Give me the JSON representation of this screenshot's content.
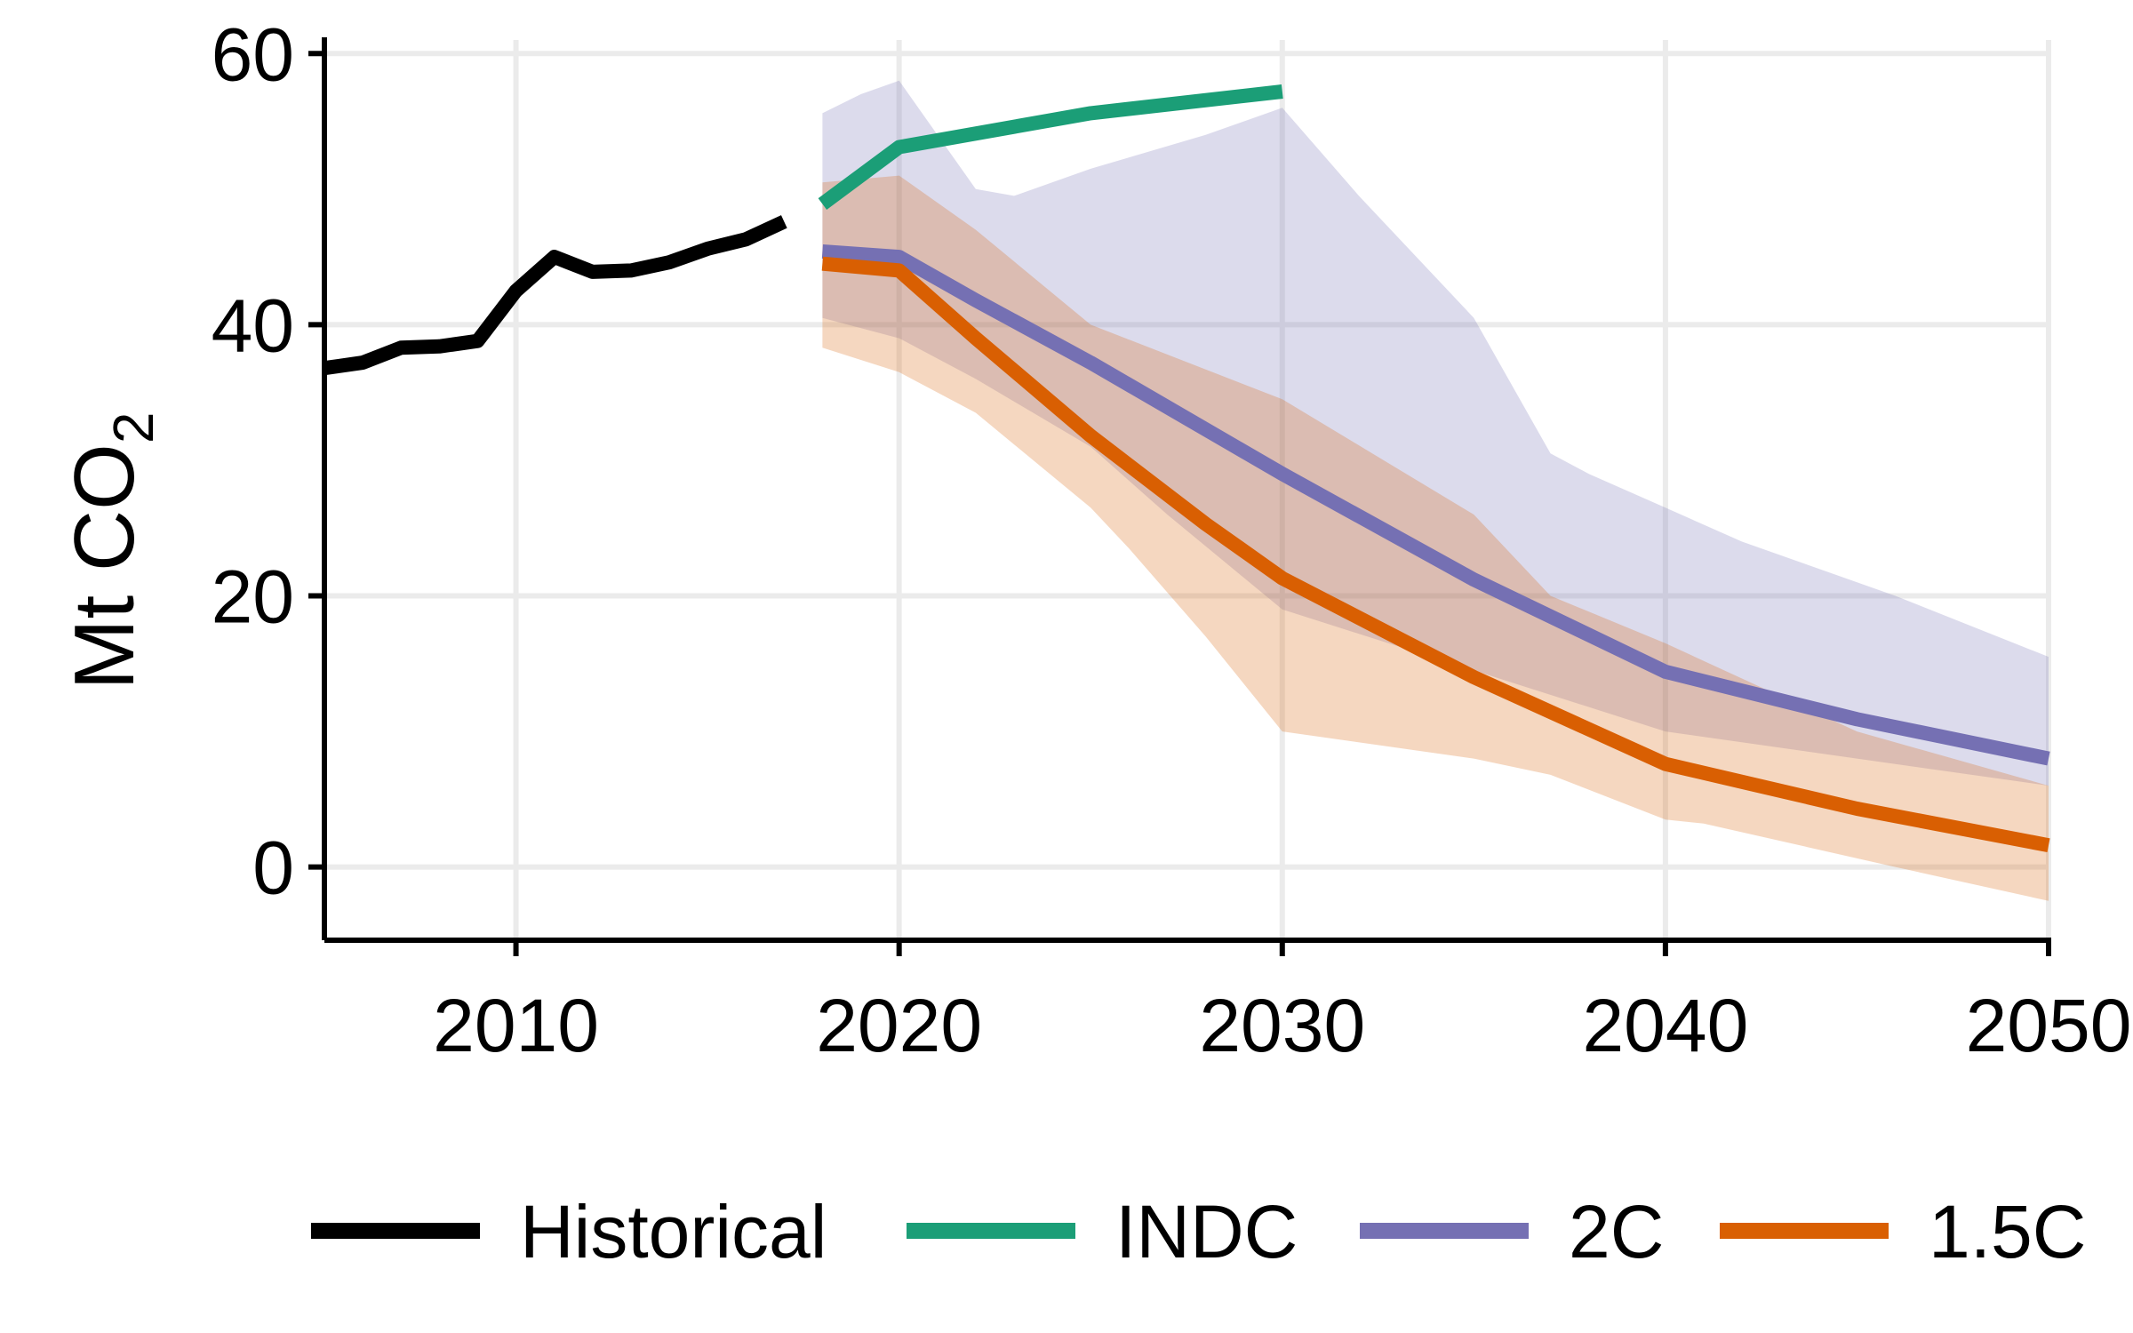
{
  "chart_data": {
    "type": "line",
    "ylabel": "Mt CO",
    "ylabel_subscript": "2",
    "xlim": [
      2005,
      2050
    ],
    "ylim": [
      -5.4,
      61
    ],
    "grid": true,
    "x_ticks": [
      2010,
      2020,
      2030,
      2040,
      2050
    ],
    "y_ticks": [
      0,
      20,
      40,
      60
    ],
    "legend_position": "bottom",
    "series": [
      {
        "name": "Historical",
        "color": "#000000",
        "points": [
          [
            2005,
            36.8
          ],
          [
            2006,
            37.2
          ],
          [
            2007,
            38.3
          ],
          [
            2008,
            38.4
          ],
          [
            2009,
            38.8
          ],
          [
            2010,
            42.5
          ],
          [
            2011,
            45.0
          ],
          [
            2012,
            43.9
          ],
          [
            2013,
            44.0
          ],
          [
            2014,
            44.6
          ],
          [
            2015,
            45.6
          ],
          [
            2016,
            46.3
          ],
          [
            2017,
            47.6
          ]
        ]
      },
      {
        "name": "INDC",
        "color": "#1b9e77",
        "points": [
          [
            2018,
            48.9
          ],
          [
            2020,
            53.1
          ],
          [
            2025,
            55.6
          ],
          [
            2030,
            57.2
          ]
        ]
      },
      {
        "name": "2C",
        "color": "#7570b3",
        "points": [
          [
            2018,
            45.4
          ],
          [
            2020,
            45.0
          ],
          [
            2022,
            41.8
          ],
          [
            2025,
            37.2
          ],
          [
            2030,
            29.0
          ],
          [
            2035,
            21.2
          ],
          [
            2040,
            14.4
          ],
          [
            2045,
            10.9
          ],
          [
            2050,
            8.0
          ]
        ],
        "band_upper": [
          [
            2018,
            55.6
          ],
          [
            2019,
            57.0
          ],
          [
            2020,
            58.0
          ],
          [
            2022,
            50.0
          ],
          [
            2023,
            49.5
          ],
          [
            2025,
            51.5
          ],
          [
            2028,
            54.0
          ],
          [
            2030,
            56.0
          ],
          [
            2032,
            49.5
          ],
          [
            2035,
            40.5
          ],
          [
            2037,
            30.5
          ],
          [
            2038,
            29.0
          ],
          [
            2040,
            26.5
          ],
          [
            2042,
            24.0
          ],
          [
            2046,
            20.0
          ],
          [
            2050,
            15.5
          ]
        ],
        "band_lower": [
          [
            2018,
            40.5
          ],
          [
            2020,
            39.0
          ],
          [
            2022,
            36.0
          ],
          [
            2025,
            31.0
          ],
          [
            2027,
            26.0
          ],
          [
            2030,
            19.0
          ],
          [
            2035,
            14.5
          ],
          [
            2040,
            10.0
          ],
          [
            2045,
            8.0
          ],
          [
            2050,
            6.0
          ]
        ]
      },
      {
        "name": "1.5C",
        "color": "#d95f02",
        "points": [
          [
            2018,
            44.5
          ],
          [
            2020,
            44.0
          ],
          [
            2022,
            39.0
          ],
          [
            2025,
            31.8
          ],
          [
            2028,
            25.3
          ],
          [
            2030,
            21.3
          ],
          [
            2035,
            14.0
          ],
          [
            2040,
            7.6
          ],
          [
            2045,
            4.3
          ],
          [
            2050,
            1.6
          ]
        ],
        "band_upper": [
          [
            2018,
            50.5
          ],
          [
            2020,
            51.0
          ],
          [
            2022,
            47.0
          ],
          [
            2025,
            40.0
          ],
          [
            2030,
            34.5
          ],
          [
            2035,
            26.0
          ],
          [
            2037,
            20.0
          ],
          [
            2040,
            16.5
          ],
          [
            2045,
            10.0
          ],
          [
            2050,
            6.0
          ]
        ],
        "band_lower": [
          [
            2018,
            38.3
          ],
          [
            2020,
            36.5
          ],
          [
            2022,
            33.5
          ],
          [
            2025,
            26.5
          ],
          [
            2026,
            23.5
          ],
          [
            2028,
            17.0
          ],
          [
            2030,
            10.0
          ],
          [
            2035,
            8.0
          ],
          [
            2037,
            6.8
          ],
          [
            2040,
            3.5
          ],
          [
            2041,
            3.2
          ],
          [
            2046,
            0.0
          ],
          [
            2050,
            -2.5
          ]
        ]
      }
    ]
  }
}
